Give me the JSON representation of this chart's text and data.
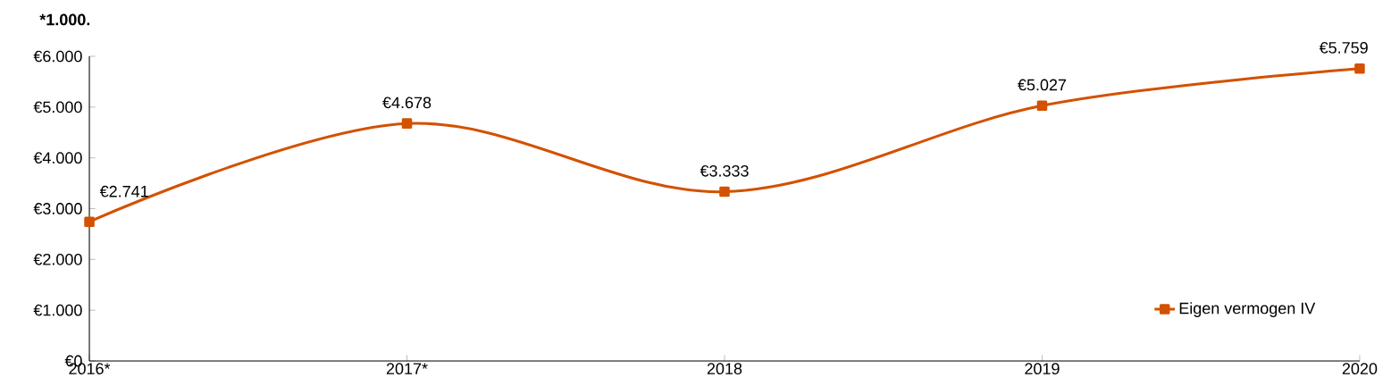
{
  "chart_data": {
    "type": "line",
    "title": "*1.000.",
    "categories": [
      "2016*",
      "2017*",
      "2018",
      "2019",
      "2020"
    ],
    "series": [
      {
        "name": "Eigen vermogen IV",
        "color": "#d35100",
        "values": [
          2741,
          4678,
          3333,
          5027,
          5759
        ],
        "value_labels": [
          "€2.741",
          "€4.678",
          "€3.333",
          "€5.027",
          "€5.759"
        ]
      }
    ],
    "ylim": [
      0,
      6000
    ],
    "yticks": [
      {
        "value": 0,
        "label": "€0"
      },
      {
        "value": 1000,
        "label": "€1.000"
      },
      {
        "value": 2000,
        "label": "€2.000"
      },
      {
        "value": 3000,
        "label": "€3.000"
      },
      {
        "value": 4000,
        "label": "€4.000"
      },
      {
        "value": 5000,
        "label": "€5.000"
      },
      {
        "value": 6000,
        "label": "€6.000"
      }
    ],
    "grid": false,
    "legend": "bottom right",
    "marker": "square",
    "line_style": "solid"
  }
}
